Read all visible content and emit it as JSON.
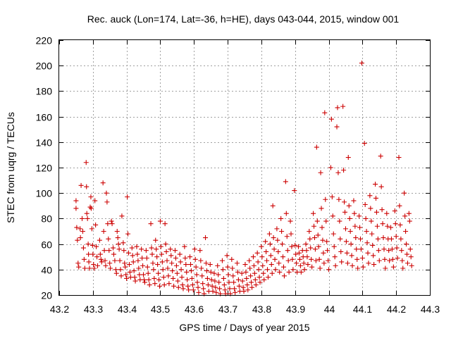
{
  "chart_data": {
    "type": "scatter",
    "title": "Rec. auck (Lon=174, Lat=-36, h=HE), days 043-044, 2015, window 001",
    "xlabel": "GPS time / Days of year 2015",
    "ylabel": "STEC from uqrg / TECUs",
    "xlim": [
      43.2,
      44.3
    ],
    "ylim": [
      20,
      220
    ],
    "xticks": [
      "43.2",
      "43.3",
      "43.4",
      "43.5",
      "43.6",
      "43.7",
      "43.8",
      "43.9",
      "44",
      "44.1",
      "44.2",
      "44.3"
    ],
    "yticks": [
      "20",
      "40",
      "60",
      "80",
      "100",
      "120",
      "140",
      "160",
      "180",
      "200",
      "220"
    ],
    "grid": true,
    "marker": "+",
    "color": "#cc0000",
    "points": [
      [
        43.25,
        94
      ],
      [
        43.25,
        88
      ],
      [
        43.252,
        73
      ],
      [
        43.254,
        63
      ],
      [
        43.256,
        45
      ],
      [
        43.258,
        42
      ],
      [
        43.262,
        72
      ],
      [
        43.263,
        65
      ],
      [
        43.265,
        106
      ],
      [
        43.268,
        80
      ],
      [
        43.27,
        70
      ],
      [
        43.272,
        57
      ],
      [
        43.274,
        48
      ],
      [
        43.276,
        41
      ],
      [
        43.28,
        124
      ],
      [
        43.281,
        105
      ],
      [
        43.282,
        84
      ],
      [
        43.284,
        80
      ],
      [
        43.286,
        60
      ],
      [
        43.287,
        52
      ],
      [
        43.288,
        46
      ],
      [
        43.29,
        41
      ],
      [
        43.292,
        89
      ],
      [
        43.294,
        97
      ],
      [
        43.295,
        88
      ],
      [
        43.297,
        72
      ],
      [
        43.299,
        59
      ],
      [
        43.3,
        52
      ],
      [
        43.302,
        44
      ],
      [
        43.304,
        41
      ],
      [
        43.306,
        94
      ],
      [
        43.308,
        75
      ],
      [
        43.31,
        58
      ],
      [
        43.312,
        50
      ],
      [
        43.314,
        43
      ],
      [
        43.32,
        63
      ],
      [
        43.322,
        52
      ],
      [
        43.324,
        48
      ],
      [
        43.326,
        46
      ],
      [
        43.33,
        108
      ],
      [
        43.332,
        70
      ],
      [
        43.334,
        55
      ],
      [
        43.336,
        47
      ],
      [
        43.338,
        43
      ],
      [
        43.34,
        100
      ],
      [
        43.342,
        93
      ],
      [
        43.344,
        76
      ],
      [
        43.346,
        64
      ],
      [
        43.348,
        55
      ],
      [
        43.35,
        45
      ],
      [
        43.352,
        41
      ],
      [
        43.355,
        78
      ],
      [
        43.357,
        76
      ],
      [
        43.36,
        57
      ],
      [
        43.362,
        52
      ],
      [
        43.365,
        47
      ],
      [
        43.368,
        40
      ],
      [
        43.37,
        37
      ],
      [
        43.372,
        70
      ],
      [
        43.374,
        65
      ],
      [
        43.376,
        60
      ],
      [
        43.378,
        56
      ],
      [
        43.38,
        47
      ],
      [
        43.382,
        40
      ],
      [
        43.384,
        35
      ],
      [
        43.386,
        82
      ],
      [
        43.39,
        61
      ],
      [
        43.392,
        55
      ],
      [
        43.394,
        45
      ],
      [
        43.396,
        42
      ],
      [
        43.398,
        36
      ],
      [
        43.4,
        33
      ],
      [
        43.402,
        97
      ],
      [
        43.404,
        68
      ],
      [
        43.406,
        53
      ],
      [
        43.408,
        44
      ],
      [
        43.41,
        38
      ],
      [
        43.412,
        34
      ],
      [
        43.416,
        57
      ],
      [
        43.418,
        51
      ],
      [
        43.42,
        46
      ],
      [
        43.422,
        39
      ],
      [
        43.424,
        34
      ],
      [
        43.426,
        31
      ],
      [
        43.43,
        58
      ],
      [
        43.432,
        52
      ],
      [
        43.434,
        47
      ],
      [
        43.436,
        41
      ],
      [
        43.438,
        36
      ],
      [
        43.44,
        32
      ],
      [
        43.444,
        56
      ],
      [
        43.446,
        49
      ],
      [
        43.448,
        43
      ],
      [
        43.45,
        36
      ],
      [
        43.452,
        32
      ],
      [
        43.454,
        30
      ],
      [
        43.458,
        55
      ],
      [
        43.46,
        49
      ],
      [
        43.462,
        42
      ],
      [
        43.464,
        37
      ],
      [
        43.466,
        32
      ],
      [
        43.468,
        28
      ],
      [
        43.472,
        76
      ],
      [
        43.474,
        57
      ],
      [
        43.476,
        52
      ],
      [
        43.478,
        45
      ],
      [
        43.48,
        40
      ],
      [
        43.482,
        33
      ],
      [
        43.484,
        29
      ],
      [
        43.486,
        63
      ],
      [
        43.488,
        56
      ],
      [
        43.49,
        50
      ],
      [
        43.492,
        44
      ],
      [
        43.494,
        37
      ],
      [
        43.496,
        32
      ],
      [
        43.498,
        27
      ],
      [
        43.5,
        78
      ],
      [
        43.502,
        58
      ],
      [
        43.504,
        52
      ],
      [
        43.506,
        46
      ],
      [
        43.508,
        40
      ],
      [
        43.51,
        34
      ],
      [
        43.512,
        28
      ],
      [
        43.514,
        76
      ],
      [
        43.516,
        60
      ],
      [
        43.518,
        54
      ],
      [
        43.52,
        47
      ],
      [
        43.522,
        41
      ],
      [
        43.524,
        35
      ],
      [
        43.526,
        29
      ],
      [
        43.53,
        56
      ],
      [
        43.532,
        51
      ],
      [
        43.534,
        45
      ],
      [
        43.536,
        39
      ],
      [
        43.538,
        33
      ],
      [
        43.54,
        27
      ],
      [
        43.544,
        55
      ],
      [
        43.546,
        49
      ],
      [
        43.548,
        43
      ],
      [
        43.55,
        37
      ],
      [
        43.552,
        31
      ],
      [
        43.554,
        26
      ],
      [
        43.558,
        52
      ],
      [
        43.56,
        46
      ],
      [
        43.562,
        40
      ],
      [
        43.564,
        34
      ],
      [
        43.566,
        28
      ],
      [
        43.568,
        25
      ],
      [
        43.572,
        58
      ],
      [
        43.574,
        49
      ],
      [
        43.576,
        44
      ],
      [
        43.578,
        38
      ],
      [
        43.58,
        32
      ],
      [
        43.582,
        27
      ],
      [
        43.584,
        24
      ],
      [
        43.588,
        50
      ],
      [
        43.59,
        44
      ],
      [
        43.592,
        39
      ],
      [
        43.594,
        33
      ],
      [
        43.596,
        28
      ],
      [
        43.598,
        24
      ],
      [
        43.602,
        56
      ],
      [
        43.604,
        48
      ],
      [
        43.606,
        42
      ],
      [
        43.608,
        36
      ],
      [
        43.61,
        30
      ],
      [
        43.612,
        26
      ],
      [
        43.614,
        22
      ],
      [
        43.618,
        55
      ],
      [
        43.62,
        47
      ],
      [
        43.622,
        41
      ],
      [
        43.624,
        35
      ],
      [
        43.626,
        29
      ],
      [
        43.628,
        25
      ],
      [
        43.63,
        21
      ],
      [
        43.634,
        65
      ],
      [
        43.636,
        45
      ],
      [
        43.638,
        39
      ],
      [
        43.64,
        33
      ],
      [
        43.642,
        28
      ],
      [
        43.644,
        23
      ],
      [
        43.648,
        44
      ],
      [
        43.65,
        38
      ],
      [
        43.652,
        32
      ],
      [
        43.654,
        27
      ],
      [
        43.656,
        23
      ],
      [
        43.66,
        37
      ],
      [
        43.662,
        31
      ],
      [
        43.664,
        26
      ],
      [
        43.666,
        22
      ],
      [
        43.67,
        43
      ],
      [
        43.672,
        36
      ],
      [
        43.674,
        30
      ],
      [
        43.676,
        25
      ],
      [
        43.678,
        21
      ],
      [
        43.684,
        47
      ],
      [
        43.686,
        40
      ],
      [
        43.688,
        33
      ],
      [
        43.69,
        28
      ],
      [
        43.692,
        24
      ],
      [
        43.694,
        21
      ],
      [
        43.698,
        51
      ],
      [
        43.7,
        42
      ],
      [
        43.702,
        36
      ],
      [
        43.704,
        30
      ],
      [
        43.706,
        25
      ],
      [
        43.708,
        21
      ],
      [
        43.712,
        48
      ],
      [
        43.714,
        41
      ],
      [
        43.716,
        35
      ],
      [
        43.718,
        30
      ],
      [
        43.72,
        25
      ],
      [
        43.722,
        22
      ],
      [
        43.728,
        45
      ],
      [
        43.73,
        38
      ],
      [
        43.732,
        32
      ],
      [
        43.734,
        27
      ],
      [
        43.736,
        23
      ],
      [
        43.742,
        37
      ],
      [
        43.744,
        31
      ],
      [
        43.746,
        26
      ],
      [
        43.748,
        23
      ],
      [
        43.752,
        44
      ],
      [
        43.754,
        38
      ],
      [
        43.756,
        33
      ],
      [
        43.758,
        28
      ],
      [
        43.76,
        24
      ],
      [
        43.764,
        47
      ],
      [
        43.766,
        41
      ],
      [
        43.768,
        35
      ],
      [
        43.77,
        30
      ],
      [
        43.772,
        26
      ],
      [
        43.776,
        50
      ],
      [
        43.778,
        43
      ],
      [
        43.78,
        37
      ],
      [
        43.782,
        32
      ],
      [
        43.784,
        28
      ],
      [
        43.788,
        53
      ],
      [
        43.79,
        46
      ],
      [
        43.792,
        40
      ],
      [
        43.794,
        34
      ],
      [
        43.796,
        30
      ],
      [
        43.8,
        58
      ],
      [
        43.802,
        50
      ],
      [
        43.804,
        43
      ],
      [
        43.806,
        37
      ],
      [
        43.808,
        32
      ],
      [
        43.812,
        62
      ],
      [
        43.814,
        54
      ],
      [
        43.816,
        47
      ],
      [
        43.818,
        40
      ],
      [
        43.82,
        34
      ],
      [
        43.824,
        68
      ],
      [
        43.826,
        60
      ],
      [
        43.828,
        51
      ],
      [
        43.83,
        44
      ],
      [
        43.832,
        37
      ],
      [
        43.834,
        90
      ],
      [
        43.836,
        65
      ],
      [
        43.838,
        56
      ],
      [
        43.84,
        48
      ],
      [
        43.842,
        40
      ],
      [
        43.846,
        72
      ],
      [
        43.848,
        63
      ],
      [
        43.85,
        54
      ],
      [
        43.852,
        45
      ],
      [
        43.854,
        38
      ],
      [
        43.858,
        80
      ],
      [
        43.86,
        70
      ],
      [
        43.862,
        60
      ],
      [
        43.864,
        50
      ],
      [
        43.866,
        42
      ],
      [
        43.868,
        35
      ],
      [
        43.872,
        109
      ],
      [
        43.874,
        84
      ],
      [
        43.876,
        66
      ],
      [
        43.878,
        55
      ],
      [
        43.88,
        47
      ],
      [
        43.882,
        38
      ],
      [
        43.886,
        78
      ],
      [
        43.888,
        68
      ],
      [
        43.89,
        58
      ],
      [
        43.892,
        48
      ],
      [
        43.894,
        40
      ],
      [
        43.898,
        102
      ],
      [
        43.9,
        59
      ],
      [
        43.902,
        52
      ],
      [
        43.904,
        45
      ],
      [
        43.906,
        38
      ],
      [
        43.91,
        58
      ],
      [
        43.912,
        53
      ],
      [
        43.914,
        48
      ],
      [
        43.916,
        43
      ],
      [
        43.918,
        38
      ],
      [
        43.922,
        55
      ],
      [
        43.924,
        50
      ],
      [
        43.926,
        45
      ],
      [
        43.928,
        40
      ],
      [
        43.932,
        60
      ],
      [
        43.934,
        55
      ],
      [
        43.936,
        50
      ],
      [
        43.938,
        44
      ],
      [
        43.942,
        70
      ],
      [
        43.944,
        64
      ],
      [
        43.946,
        57
      ],
      [
        43.948,
        48
      ],
      [
        43.95,
        42
      ],
      [
        43.954,
        84
      ],
      [
        43.956,
        74
      ],
      [
        43.958,
        65
      ],
      [
        43.96,
        56
      ],
      [
        43.962,
        47
      ],
      [
        43.964,
        136
      ],
      [
        43.966,
        78
      ],
      [
        43.968,
        67
      ],
      [
        43.97,
        58
      ],
      [
        43.972,
        48
      ],
      [
        43.974,
        41
      ],
      [
        43.976,
        116
      ],
      [
        43.978,
        88
      ],
      [
        43.98,
        73
      ],
      [
        43.982,
        63
      ],
      [
        43.984,
        53
      ],
      [
        43.986,
        45
      ],
      [
        43.988,
        163
      ],
      [
        43.99,
        95
      ],
      [
        43.992,
        78
      ],
      [
        43.994,
        62
      ],
      [
        43.996,
        55
      ],
      [
        43.998,
        47
      ],
      [
        44.0,
        40
      ],
      [
        44.006,
        120
      ],
      [
        44.008,
        158
      ],
      [
        44.01,
        97
      ],
      [
        44.012,
        82
      ],
      [
        44.014,
        68
      ],
      [
        44.016,
        58
      ],
      [
        44.018,
        50
      ],
      [
        44.02,
        43
      ],
      [
        44.024,
        152
      ],
      [
        44.026,
        167
      ],
      [
        44.028,
        116
      ],
      [
        44.03,
        95
      ],
      [
        44.032,
        78
      ],
      [
        44.034,
        64
      ],
      [
        44.036,
        54
      ],
      [
        44.038,
        46
      ],
      [
        44.042,
        168
      ],
      [
        44.044,
        118
      ],
      [
        44.046,
        93
      ],
      [
        44.048,
        85
      ],
      [
        44.05,
        72
      ],
      [
        44.052,
        62
      ],
      [
        44.054,
        53
      ],
      [
        44.056,
        45
      ],
      [
        44.058,
        128
      ],
      [
        44.06,
        90
      ],
      [
        44.062,
        80
      ],
      [
        44.064,
        70
      ],
      [
        44.066,
        60
      ],
      [
        44.068,
        51
      ],
      [
        44.07,
        43
      ],
      [
        44.074,
        94
      ],
      [
        44.076,
        84
      ],
      [
        44.078,
        74
      ],
      [
        44.08,
        65
      ],
      [
        44.082,
        56
      ],
      [
        44.084,
        48
      ],
      [
        44.086,
        41
      ],
      [
        44.09,
        82
      ],
      [
        44.092,
        73
      ],
      [
        44.094,
        64
      ],
      [
        44.096,
        56
      ],
      [
        44.098,
        202
      ],
      [
        44.1,
        49
      ],
      [
        44.102,
        42
      ],
      [
        44.106,
        139
      ],
      [
        44.108,
        91
      ],
      [
        44.11,
        80
      ],
      [
        44.112,
        70
      ],
      [
        44.114,
        61
      ],
      [
        44.116,
        53
      ],
      [
        44.118,
        45
      ],
      [
        44.122,
        98
      ],
      [
        44.124,
        88
      ],
      [
        44.126,
        78
      ],
      [
        44.128,
        68
      ],
      [
        44.13,
        59
      ],
      [
        44.132,
        51
      ],
      [
        44.134,
        44
      ],
      [
        44.138,
        107
      ],
      [
        44.14,
        96
      ],
      [
        44.142,
        85
      ],
      [
        44.144,
        74
      ],
      [
        44.146,
        64
      ],
      [
        44.148,
        55
      ],
      [
        44.15,
        47
      ],
      [
        44.154,
        129
      ],
      [
        44.156,
        105
      ],
      [
        44.158,
        87
      ],
      [
        44.16,
        76
      ],
      [
        44.162,
        65
      ],
      [
        44.164,
        56
      ],
      [
        44.166,
        48
      ],
      [
        44.168,
        41
      ],
      [
        44.172,
        84
      ],
      [
        44.174,
        74
      ],
      [
        44.176,
        64
      ],
      [
        44.178,
        55
      ],
      [
        44.18,
        47
      ],
      [
        44.184,
        73
      ],
      [
        44.186,
        64
      ],
      [
        44.188,
        56
      ],
      [
        44.19,
        48
      ],
      [
        44.192,
        42
      ],
      [
        44.196,
        86
      ],
      [
        44.198,
        76
      ],
      [
        44.2,
        66
      ],
      [
        44.202,
        57
      ],
      [
        44.204,
        49
      ],
      [
        44.208,
        128
      ],
      [
        44.21,
        90
      ],
      [
        44.212,
        75
      ],
      [
        44.214,
        64
      ],
      [
        44.216,
        55
      ],
      [
        44.218,
        47
      ],
      [
        44.22,
        41
      ],
      [
        44.224,
        100
      ],
      [
        44.226,
        82
      ],
      [
        44.228,
        70
      ],
      [
        44.23,
        60
      ],
      [
        44.232,
        52
      ],
      [
        44.234,
        45
      ],
      [
        44.238,
        84
      ],
      [
        44.24,
        78
      ],
      [
        44.242,
        56
      ],
      [
        44.244,
        50
      ],
      [
        44.246,
        43
      ]
    ]
  }
}
